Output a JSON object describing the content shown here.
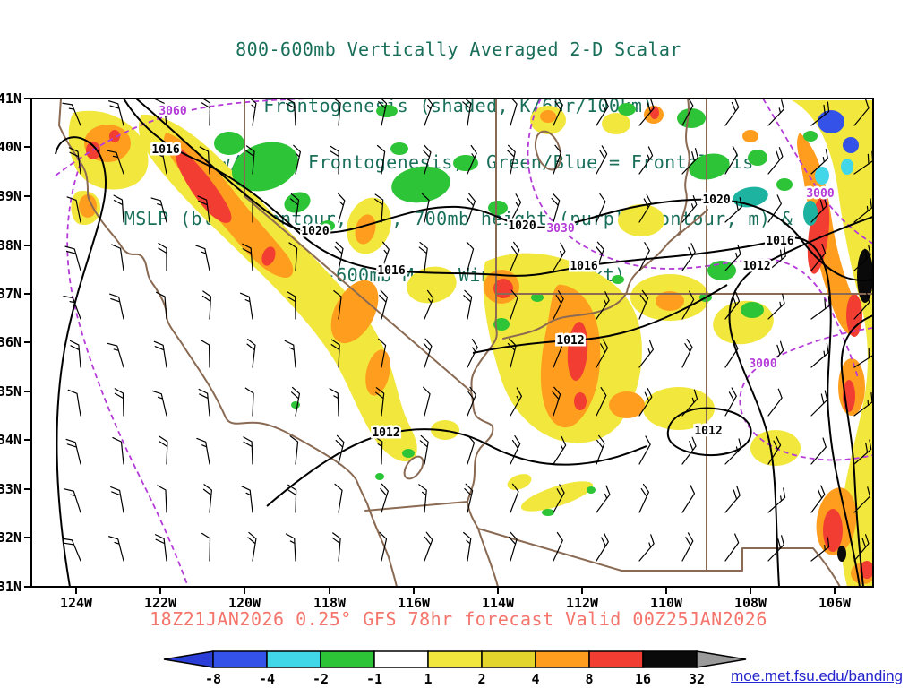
{
  "title": {
    "lines": [
      "800-600mb Vertically Averaged 2-D Scalar",
      "Frontogenesis (shaded, K/6hr/100km)",
      "Yellow/Red = Frontogenesis;  Green/Blue = Frontolysis",
      "MSLP (black contour, mb), 700mb height (purple contour, m) &",
      "800-600mb Mean Wind (barb, kt)"
    ]
  },
  "caption": "18Z21JAN2026 0.25° GFS 78hr forecast Valid 00Z25JAN2026",
  "link": "moe.met.fsu.edu/banding",
  "axes": {
    "lat": [
      "41N",
      "40N",
      "39N",
      "38N",
      "37N",
      "36N",
      "35N",
      "34N",
      "33N",
      "32N",
      "31N"
    ],
    "lon": [
      "124W",
      "122W",
      "120W",
      "118W",
      "116W",
      "114W",
      "112W",
      "110W",
      "108W",
      "106W"
    ]
  },
  "contours": {
    "mslp_black": [
      "1016",
      "1020",
      "1020",
      "1020",
      "1016",
      "1016",
      "1016",
      "1012",
      "1012",
      "1012",
      "1012"
    ],
    "height_purple": [
      "3060",
      "3030",
      "3000",
      "3000"
    ]
  },
  "colorbar": {
    "tick_labels": [
      "-8",
      "-4",
      "-2",
      "-1",
      "1",
      "2",
      "4",
      "8",
      "16",
      "32"
    ],
    "cell_colors": [
      "#3452e8",
      "#41d7e8",
      "#2dc437",
      "#ffffff",
      "#f2e73c",
      "#e3d52c",
      "#ff9e1e",
      "#f23d32",
      "#0a0a0a"
    ],
    "below_min_color": "#2b3fd8",
    "above_max_color": "#9a9a9a"
  },
  "palette": {
    "yellow": "#f2e73c",
    "orange": "#ff9e1e",
    "red": "#f23d32",
    "green": "#2dc437",
    "teal": "#1db3a0",
    "cyan": "#41d7e8",
    "blue": "#3452e8",
    "black_extreme": "#0a0a0a",
    "contour_black": "#000000",
    "contour_purple": "#b43bd8",
    "geography_brown": "#8a6a52",
    "title_green": "#1a6f5a",
    "caption_red": "#f4756b",
    "link_blue": "#2424cc"
  },
  "chart_data": {
    "type": "heatmap",
    "title": "800-600mb Vertically Averaged 2-D Scalar Frontogenesis (shaded, K/6hr/100km)",
    "shading_units": "K/6hr/100km",
    "shading_scale_boundaries": [
      -8,
      -4,
      -2,
      -1,
      1,
      2,
      4,
      8,
      16,
      32
    ],
    "shading_meaning": {
      "yellow_red": "Frontogenesis",
      "green_blue": "Frontolysis"
    },
    "mslp_contours_mb": [
      1012,
      1016,
      1020
    ],
    "height_700mb_contours_m": [
      3000,
      3030,
      3060
    ],
    "wind_barbs": {
      "level": "800-600mb mean",
      "units": "kt"
    },
    "map_extent": {
      "lat_ticks_N": [
        41,
        40,
        39,
        38,
        37,
        36,
        35,
        34,
        33,
        32,
        31
      ],
      "lon_ticks_W": [
        124,
        122,
        120,
        118,
        116,
        114,
        112,
        110,
        108,
        106
      ]
    },
    "model_run": "18Z21JAN2026",
    "resolution": "0.25°",
    "forecast_hour": "78hr",
    "valid_time": "00Z25JAN2026",
    "legend_position": "bottom"
  }
}
